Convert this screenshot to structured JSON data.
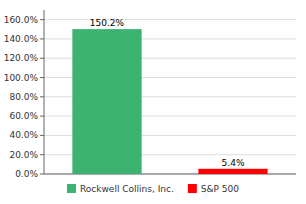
{
  "chart_data": {
    "type": "bar",
    "categories": [
      "Rockwell Collins, Inc.",
      "S&P 500"
    ],
    "values": [
      150.2,
      5.4
    ],
    "value_labels": [
      "150.2%",
      "5.4%"
    ],
    "colors": [
      "#3CB371",
      "#FF0000"
    ],
    "ylim": [
      0,
      170
    ],
    "yticks": [
      {
        "value": 0,
        "label": "0.0%"
      },
      {
        "value": 20,
        "label": "20.0%"
      },
      {
        "value": 40,
        "label": "40.0%"
      },
      {
        "value": 60,
        "label": "60.0%"
      },
      {
        "value": 80,
        "label": "80.0%"
      },
      {
        "value": 100,
        "label": "100.0%"
      },
      {
        "value": 120,
        "label": "120.0%"
      },
      {
        "value": 140,
        "label": "140.0%"
      },
      {
        "value": 160,
        "label": "160.0%"
      }
    ],
    "grid": true,
    "data_labels": true,
    "tick_labels": "y",
    "legend": "bottom"
  }
}
